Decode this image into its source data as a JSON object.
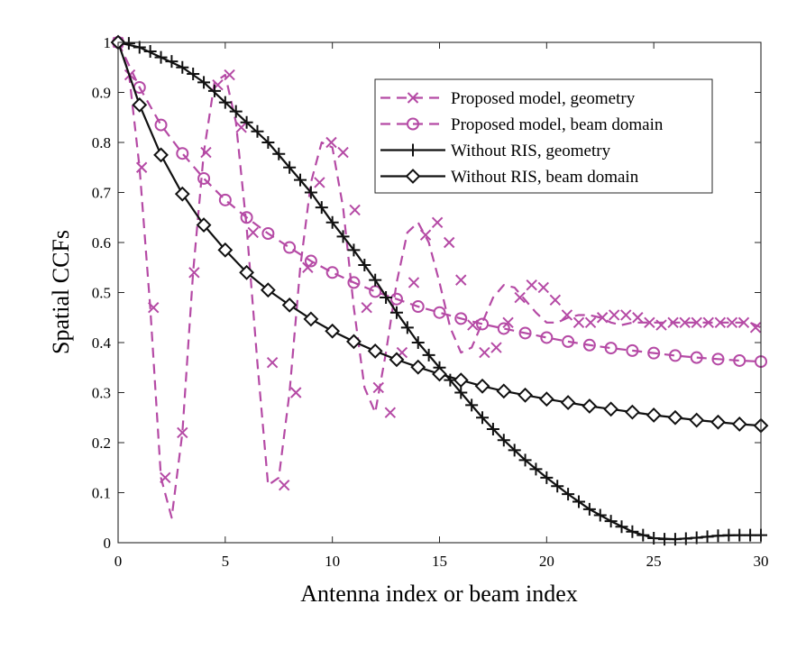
{
  "chart_data": {
    "type": "line",
    "title": "",
    "xlabel": "Antenna index or beam index",
    "ylabel": "Spatial CCFs",
    "xlim": [
      0,
      30
    ],
    "ylim": [
      0,
      1
    ],
    "xticks": [
      0,
      5,
      10,
      15,
      20,
      25,
      30
    ],
    "yticks": [
      0,
      0.1,
      0.2,
      0.3,
      0.4,
      0.5,
      0.6,
      0.7,
      0.8,
      0.9,
      1
    ],
    "xtick_labels": [
      "0",
      "5",
      "10",
      "15",
      "20",
      "25",
      "30"
    ],
    "ytick_labels": [
      "0",
      "0.1",
      "0.2",
      "0.3",
      "0.4",
      "0.5",
      "0.6",
      "0.7",
      "0.8",
      "0.9",
      "1"
    ],
    "grid": false,
    "legend_position": "top-right",
    "series": [
      {
        "name": "Proposed model, geometry",
        "color": "#b54aa5",
        "line": "dashed",
        "marker": "x",
        "x": [
          0,
          0.5,
          1,
          1.5,
          2,
          2.5,
          3,
          3.5,
          4,
          4.5,
          5,
          5.5,
          6,
          6.5,
          7,
          7.5,
          8,
          8.5,
          9,
          9.5,
          10,
          10.5,
          11,
          11.5,
          12,
          12.5,
          13,
          13.5,
          14,
          14.5,
          15,
          15.5,
          16,
          16.5,
          17,
          17.5,
          18,
          18.5,
          19,
          19.5,
          20,
          20.5,
          21,
          21.5,
          22,
          22.5,
          23,
          23.5,
          24,
          24.5,
          25,
          25.5,
          26,
          26.5,
          27,
          27.5,
          28,
          28.5,
          29,
          29.5,
          30
        ],
        "values": [
          1.0,
          0.94,
          0.75,
          0.47,
          0.13,
          0.05,
          0.22,
          0.54,
          0.78,
          0.92,
          0.935,
          0.84,
          0.63,
          0.36,
          0.115,
          0.13,
          0.3,
          0.55,
          0.72,
          0.8,
          0.79,
          0.67,
          0.47,
          0.31,
          0.26,
          0.38,
          0.52,
          0.62,
          0.64,
          0.6,
          0.52,
          0.43,
          0.38,
          0.39,
          0.44,
          0.49,
          0.515,
          0.51,
          0.485,
          0.46,
          0.44,
          0.44,
          0.45,
          0.455,
          0.455,
          0.45,
          0.44,
          0.435,
          0.44,
          0.44,
          0.44,
          0.44,
          0.44,
          0.44,
          0.44,
          0.44,
          0.44,
          0.44,
          0.44,
          0.44,
          0.43
        ],
        "marker_x": [
          0,
          0.55,
          1.1,
          1.65,
          2.2,
          3.0,
          3.55,
          4.1,
          4.65,
          5.2,
          5.75,
          6.3,
          7.2,
          7.75,
          8.3,
          8.85,
          9.4,
          9.95,
          10.5,
          11.05,
          11.6,
          12.15,
          12.7,
          13.25,
          13.8,
          14.35,
          14.9,
          15.45,
          16.0,
          16.55,
          17.1,
          17.65,
          18.2,
          18.75,
          19.3,
          19.85,
          20.4,
          20.95,
          21.5,
          22.05,
          22.6,
          23.15,
          23.7,
          24.25,
          24.8,
          25.35,
          25.9,
          26.45,
          27.0,
          27.55,
          28.1,
          28.65,
          29.2,
          29.75
        ],
        "marker_y": [
          1.0,
          0.935,
          0.75,
          0.47,
          0.13,
          0.22,
          0.54,
          0.78,
          0.915,
          0.935,
          0.83,
          0.62,
          0.36,
          0.115,
          0.3,
          0.55,
          0.72,
          0.8,
          0.78,
          0.665,
          0.47,
          0.31,
          0.26,
          0.38,
          0.52,
          0.615,
          0.64,
          0.6,
          0.525,
          0.435,
          0.38,
          0.39,
          0.44,
          0.49,
          0.515,
          0.51,
          0.485,
          0.455,
          0.44,
          0.44,
          0.45,
          0.455,
          0.455,
          0.45,
          0.44,
          0.435,
          0.44,
          0.44,
          0.44,
          0.44,
          0.44,
          0.44,
          0.44,
          0.43
        ]
      },
      {
        "name": "Proposed model, beam domain",
        "color": "#b54aa5",
        "line": "dashed",
        "marker": "o",
        "x": [
          0,
          1,
          2,
          3,
          4,
          5,
          6,
          7,
          8,
          9,
          10,
          11,
          12,
          13,
          14,
          15,
          16,
          17,
          18,
          19,
          20,
          21,
          22,
          23,
          24,
          25,
          26,
          27,
          28,
          29,
          30
        ],
        "values": [
          1.0,
          0.91,
          0.835,
          0.778,
          0.728,
          0.685,
          0.65,
          0.618,
          0.59,
          0.563,
          0.54,
          0.52,
          0.502,
          0.487,
          0.472,
          0.46,
          0.448,
          0.437,
          0.428,
          0.419,
          0.41,
          0.402,
          0.395,
          0.389,
          0.384,
          0.379,
          0.374,
          0.37,
          0.367,
          0.364,
          0.362
        ],
        "marker_x": [
          0,
          1,
          2,
          3,
          4,
          5,
          6,
          7,
          8,
          9,
          10,
          11,
          12,
          13,
          14,
          15,
          16,
          17,
          18,
          19,
          20,
          21,
          22,
          23,
          24,
          25,
          26,
          27,
          28,
          29,
          30
        ],
        "marker_y": [
          1.0,
          0.91,
          0.835,
          0.778,
          0.728,
          0.685,
          0.65,
          0.618,
          0.59,
          0.563,
          0.54,
          0.52,
          0.502,
          0.487,
          0.472,
          0.46,
          0.448,
          0.437,
          0.428,
          0.419,
          0.41,
          0.402,
          0.395,
          0.389,
          0.384,
          0.379,
          0.374,
          0.37,
          0.367,
          0.364,
          0.362
        ]
      },
      {
        "name": "Without RIS, geometry",
        "color": "#111111",
        "line": "solid",
        "marker": "+",
        "x": [
          0,
          1,
          2,
          3,
          4,
          5,
          6,
          7,
          8,
          9,
          10,
          11,
          12,
          13,
          14,
          15,
          16,
          17,
          18,
          19,
          20,
          21,
          22,
          23,
          24,
          25,
          26,
          27,
          28,
          29,
          30
        ],
        "values": [
          1.0,
          0.99,
          0.97,
          0.95,
          0.92,
          0.88,
          0.84,
          0.8,
          0.75,
          0.7,
          0.64,
          0.585,
          0.525,
          0.46,
          0.4,
          0.35,
          0.3,
          0.25,
          0.205,
          0.165,
          0.13,
          0.097,
          0.067,
          0.043,
          0.022,
          0.009,
          0.007,
          0.01,
          0.014,
          0.015,
          0.015
        ],
        "marker_x": [
          0,
          0.5,
          1,
          1.5,
          2,
          2.5,
          3,
          3.5,
          4,
          4.5,
          5,
          5.5,
          6,
          6.5,
          7,
          7.5,
          8,
          8.5,
          9,
          9.5,
          10,
          10.5,
          11,
          11.5,
          12,
          12.5,
          13,
          13.5,
          14,
          14.5,
          15,
          15.5,
          16,
          16.5,
          17,
          17.5,
          18,
          18.5,
          19,
          19.5,
          20,
          20.5,
          21,
          21.5,
          22,
          22.5,
          23,
          23.5,
          24,
          24.5,
          25,
          25.5,
          26,
          26.5,
          27,
          27.5,
          28,
          28.5,
          29,
          29.5,
          30
        ],
        "marker_y": [
          1.0,
          0.998,
          0.99,
          0.982,
          0.97,
          0.962,
          0.95,
          0.937,
          0.92,
          0.903,
          0.88,
          0.862,
          0.84,
          0.822,
          0.8,
          0.777,
          0.75,
          0.725,
          0.7,
          0.67,
          0.64,
          0.612,
          0.585,
          0.555,
          0.525,
          0.49,
          0.46,
          0.43,
          0.4,
          0.375,
          0.35,
          0.325,
          0.3,
          0.275,
          0.25,
          0.227,
          0.205,
          0.185,
          0.165,
          0.147,
          0.13,
          0.113,
          0.097,
          0.082,
          0.067,
          0.055,
          0.043,
          0.032,
          0.022,
          0.015,
          0.009,
          0.007,
          0.007,
          0.008,
          0.01,
          0.012,
          0.014,
          0.015,
          0.015,
          0.015,
          0.015
        ]
      },
      {
        "name": "Without RIS, beam domain",
        "color": "#111111",
        "line": "solid",
        "marker": "diamond",
        "x": [
          0,
          1,
          2,
          3,
          4,
          5,
          6,
          7,
          8,
          9,
          10,
          11,
          12,
          13,
          14,
          15,
          16,
          17,
          18,
          19,
          20,
          21,
          22,
          23,
          24,
          25,
          26,
          27,
          28,
          29,
          30
        ],
        "values": [
          1.0,
          0.875,
          0.775,
          0.697,
          0.635,
          0.585,
          0.54,
          0.505,
          0.475,
          0.447,
          0.423,
          0.402,
          0.383,
          0.366,
          0.351,
          0.337,
          0.325,
          0.313,
          0.303,
          0.295,
          0.287,
          0.28,
          0.273,
          0.267,
          0.261,
          0.255,
          0.25,
          0.245,
          0.241,
          0.237,
          0.234
        ],
        "marker_x": [
          0,
          1,
          2,
          3,
          4,
          5,
          6,
          7,
          8,
          9,
          10,
          11,
          12,
          13,
          14,
          15,
          16,
          17,
          18,
          19,
          20,
          21,
          22,
          23,
          24,
          25,
          26,
          27,
          28,
          29,
          30
        ],
        "marker_y": [
          1.0,
          0.875,
          0.775,
          0.697,
          0.635,
          0.585,
          0.54,
          0.505,
          0.475,
          0.447,
          0.423,
          0.402,
          0.383,
          0.366,
          0.351,
          0.337,
          0.325,
          0.313,
          0.303,
          0.295,
          0.287,
          0.28,
          0.273,
          0.267,
          0.261,
          0.255,
          0.25,
          0.245,
          0.241,
          0.237,
          0.234
        ]
      }
    ]
  }
}
